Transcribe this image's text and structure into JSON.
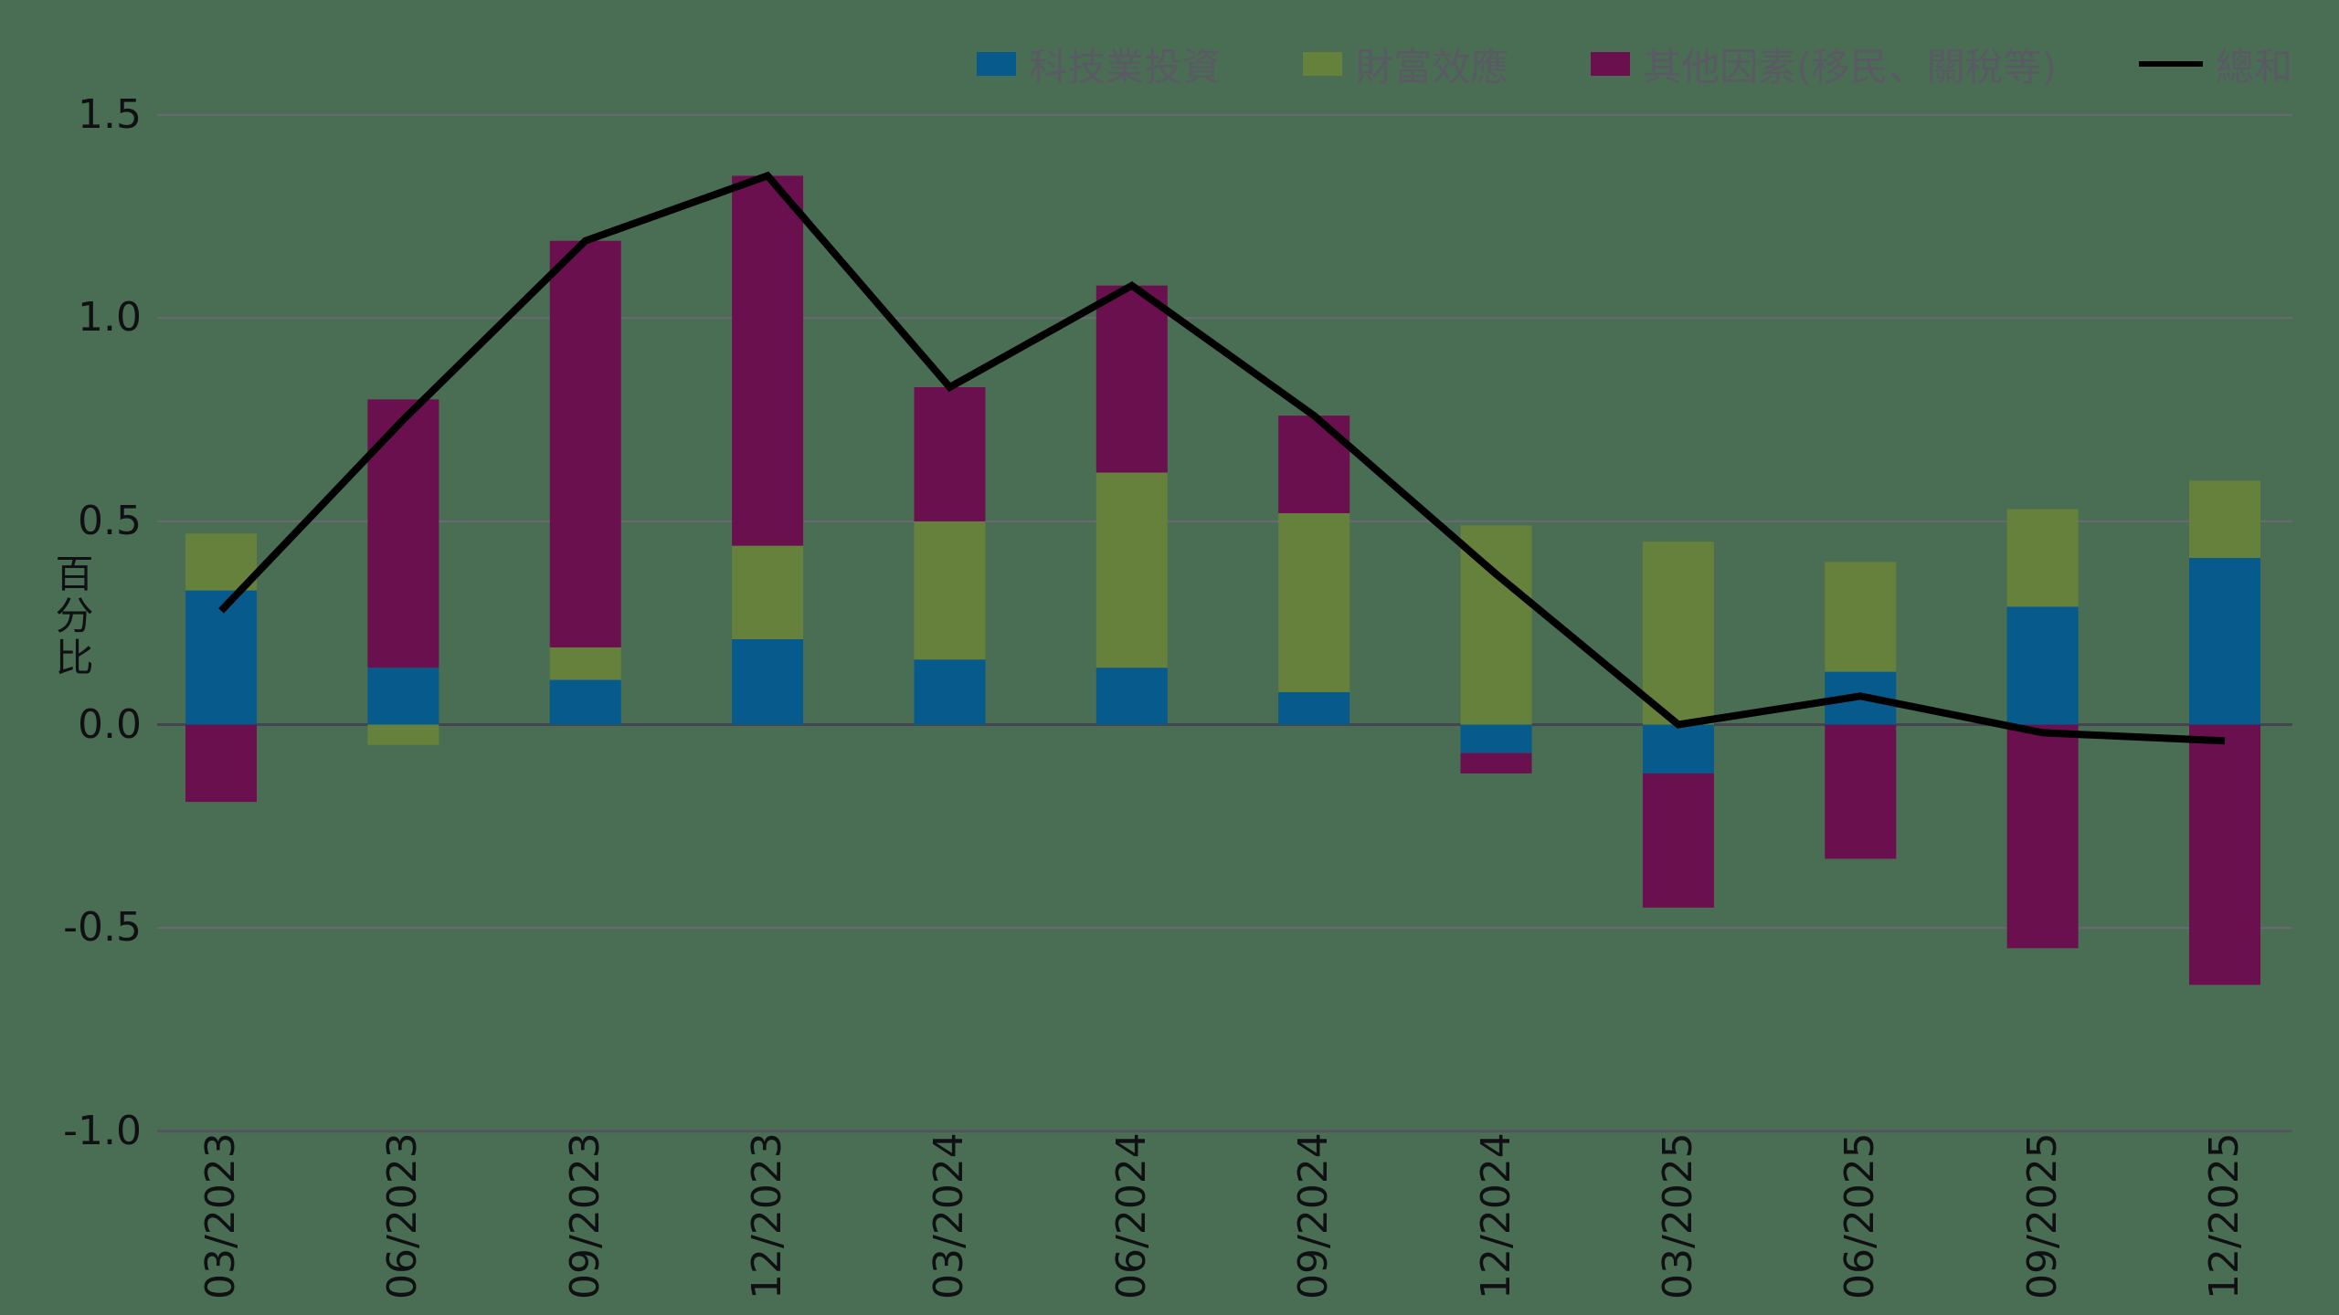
{
  "y_axis": {
    "label": "百分比",
    "ticks": [
      {
        "text": "1.5",
        "value": 1.5
      },
      {
        "text": "1.0",
        "value": 1.0
      },
      {
        "text": "0.5",
        "value": 0.5
      },
      {
        "text": "0.0",
        "value": 0.0
      },
      {
        "text": "-0.5",
        "value": -0.5
      },
      {
        "text": "-1.0",
        "value": -1.0
      }
    ]
  },
  "legend": {
    "items": [
      {
        "label": "科技業投資",
        "swatch": "square",
        "color": "#065A8C"
      },
      {
        "label": "財富效應",
        "swatch": "square",
        "color": "#66813C"
      },
      {
        "label": "其他因素(移民、關稅等)",
        "swatch": "square",
        "color": "#6B104E"
      },
      {
        "label": "總和",
        "swatch": "line",
        "color": "#000000"
      }
    ]
  },
  "chart_data": {
    "type": "stacked_bar_line",
    "title": "",
    "xlabel": "",
    "ylabel": "百分比",
    "ylim": [
      -1.0,
      1.5
    ],
    "ytick_step": 0.5,
    "grid": "horizontal",
    "legend_position": "top-right",
    "categories": [
      "03/2023",
      "06/2023",
      "09/2023",
      "12/2023",
      "03/2024",
      "06/2024",
      "09/2024",
      "12/2024",
      "03/2025",
      "06/2025",
      "09/2025",
      "12/2025"
    ],
    "series": [
      {
        "name": "科技業投資",
        "type": "bar",
        "color": "#065A8C",
        "values": [
          0.33,
          0.14,
          0.11,
          0.21,
          0.16,
          0.14,
          0.08,
          -0.07,
          -0.12,
          0.13,
          0.29,
          0.41
        ]
      },
      {
        "name": "財富效應",
        "type": "bar",
        "color": "#66813C",
        "values": [
          0.14,
          -0.05,
          0.08,
          0.23,
          0.34,
          0.48,
          0.44,
          0.49,
          0.45,
          0.27,
          0.24,
          0.19
        ]
      },
      {
        "name": "其他因素(移民、關稅等)",
        "type": "bar",
        "color": "#6B104E",
        "values": [
          -0.19,
          0.66,
          1.0,
          0.91,
          0.33,
          0.46,
          0.24,
          -0.05,
          -0.33,
          -0.33,
          -0.55,
          -0.64
        ]
      },
      {
        "name": "總和",
        "type": "line",
        "color": "#000000",
        "values": [
          0.28,
          0.75,
          1.19,
          1.35,
          0.83,
          1.08,
          0.76,
          0.37,
          0.0,
          0.07,
          -0.02,
          -0.04
        ]
      }
    ],
    "colors": {
      "background": "#4A6E53",
      "gridline": "#6B6974",
      "zero_line": "#46454F",
      "baseline": "#55545E",
      "tick_text": "#101014",
      "legend_text": "#5A5A64"
    }
  }
}
